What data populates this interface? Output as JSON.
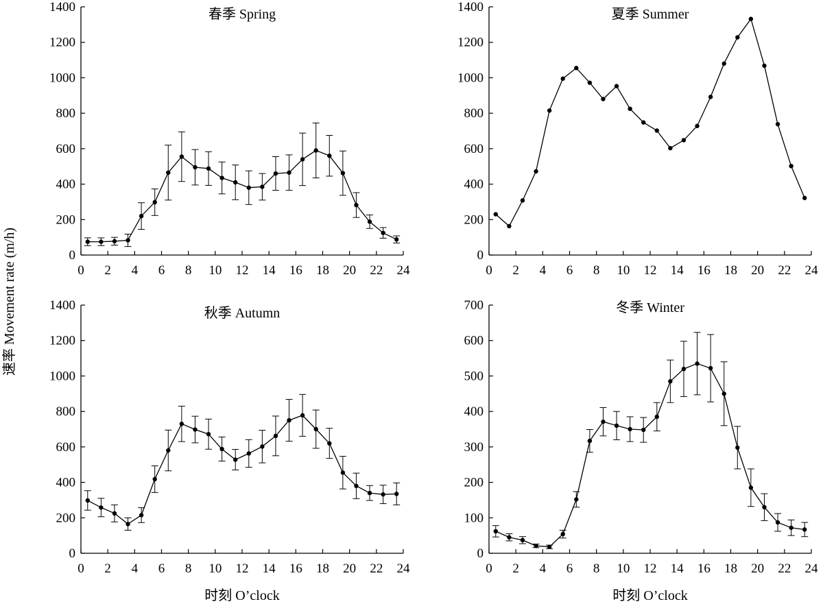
{
  "figure": {
    "ylabel": "速率 Movement rate (m/h)",
    "xlabel": "时刻 O’clock"
  },
  "chart_data": [
    {
      "type": "line",
      "title": "春季 Spring",
      "xlim": [
        0,
        24
      ],
      "ylim": [
        0,
        1400
      ],
      "xticks": [
        "0",
        "2",
        "4",
        "6",
        "8",
        "10",
        "12",
        "14",
        "16",
        "18",
        "20",
        "22",
        "24"
      ],
      "yticks": [
        "0",
        "200",
        "400",
        "600",
        "800",
        "1000",
        "1200",
        "1400"
      ],
      "error_bars": true,
      "x": [
        0.5,
        1.5,
        2.5,
        3.5,
        4.5,
        5.5,
        6.5,
        7.5,
        8.5,
        9.5,
        10.5,
        11.5,
        12.5,
        13.5,
        14.5,
        15.5,
        16.5,
        17.5,
        18.5,
        19.5,
        20.5,
        21.5,
        22.5,
        23.5
      ],
      "y": [
        75,
        75,
        78,
        83,
        220,
        298,
        465,
        555,
        495,
        488,
        435,
        410,
        380,
        385,
        460,
        465,
        540,
        590,
        560,
        462,
        282,
        188,
        125,
        88
      ],
      "err": [
        22,
        22,
        22,
        35,
        75,
        75,
        155,
        140,
        100,
        95,
        90,
        98,
        95,
        75,
        95,
        100,
        148,
        155,
        115,
        125,
        70,
        38,
        30,
        20
      ]
    },
    {
      "type": "line",
      "title": "夏季 Summer",
      "xlim": [
        0,
        24
      ],
      "ylim": [
        0,
        1400
      ],
      "xticks": [
        "0",
        "2",
        "4",
        "6",
        "8",
        "10",
        "12",
        "14",
        "16",
        "18",
        "20",
        "22",
        "24"
      ],
      "yticks": [
        "0",
        "200",
        "400",
        "600",
        "800",
        "1000",
        "1200",
        "1400"
      ],
      "error_bars": false,
      "x": [
        0.5,
        1.5,
        2.5,
        3.5,
        4.5,
        5.5,
        6.5,
        7.5,
        8.5,
        9.5,
        10.5,
        11.5,
        12.5,
        13.5,
        14.5,
        15.5,
        16.5,
        17.5,
        18.5,
        19.5,
        20.5,
        21.5,
        22.5,
        23.5
      ],
      "y": [
        230,
        163,
        308,
        472,
        815,
        995,
        1055,
        972,
        880,
        953,
        825,
        748,
        702,
        603,
        648,
        728,
        892,
        1080,
        1228,
        1332,
        1068,
        738,
        502,
        322
      ]
    },
    {
      "type": "line",
      "title": "秋季 Autumn",
      "xlim": [
        0,
        24
      ],
      "ylim": [
        0,
        1400
      ],
      "xticks": [
        "0",
        "2",
        "4",
        "6",
        "8",
        "10",
        "12",
        "14",
        "16",
        "18",
        "20",
        "22",
        "24"
      ],
      "yticks": [
        "0",
        "200",
        "400",
        "600",
        "800",
        "1000",
        "1200",
        "1400"
      ],
      "error_bars": true,
      "x": [
        0.5,
        1.5,
        2.5,
        3.5,
        4.5,
        5.5,
        6.5,
        7.5,
        8.5,
        9.5,
        10.5,
        11.5,
        12.5,
        13.5,
        14.5,
        15.5,
        16.5,
        17.5,
        18.5,
        19.5,
        20.5,
        21.5,
        22.5,
        23.5
      ],
      "y": [
        298,
        258,
        225,
        165,
        215,
        418,
        580,
        730,
        698,
        672,
        588,
        528,
        563,
        602,
        662,
        750,
        778,
        700,
        620,
        455,
        380,
        340,
        332,
        335
      ],
      "err": [
        55,
        52,
        48,
        35,
        42,
        75,
        115,
        100,
        75,
        85,
        68,
        58,
        78,
        92,
        112,
        118,
        118,
        108,
        85,
        92,
        72,
        42,
        52,
        62
      ]
    },
    {
      "type": "line",
      "title": "冬季 Winter",
      "xlim": [
        0,
        24
      ],
      "ylim": [
        0,
        700
      ],
      "xticks": [
        "0",
        "2",
        "4",
        "6",
        "8",
        "10",
        "12",
        "14",
        "16",
        "18",
        "20",
        "22",
        "24"
      ],
      "yticks": [
        "0",
        "100",
        "200",
        "300",
        "400",
        "500",
        "600",
        "700"
      ],
      "error_bars": true,
      "x": [
        0.5,
        1.5,
        2.5,
        3.5,
        4.5,
        5.5,
        6.5,
        7.5,
        8.5,
        9.5,
        10.5,
        11.5,
        12.5,
        13.5,
        14.5,
        15.5,
        16.5,
        17.5,
        18.5,
        19.5,
        20.5,
        21.5,
        22.5,
        23.5
      ],
      "y": [
        62,
        45,
        37,
        21,
        18,
        54,
        152,
        317,
        371,
        360,
        350,
        348,
        385,
        485,
        520,
        535,
        522,
        450,
        298,
        185,
        130,
        87,
        72,
        67
      ],
      "err": [
        16,
        10,
        10,
        5,
        5,
        11,
        22,
        32,
        40,
        40,
        35,
        35,
        40,
        60,
        78,
        88,
        95,
        90,
        60,
        53,
        38,
        25,
        22,
        20
      ]
    }
  ]
}
